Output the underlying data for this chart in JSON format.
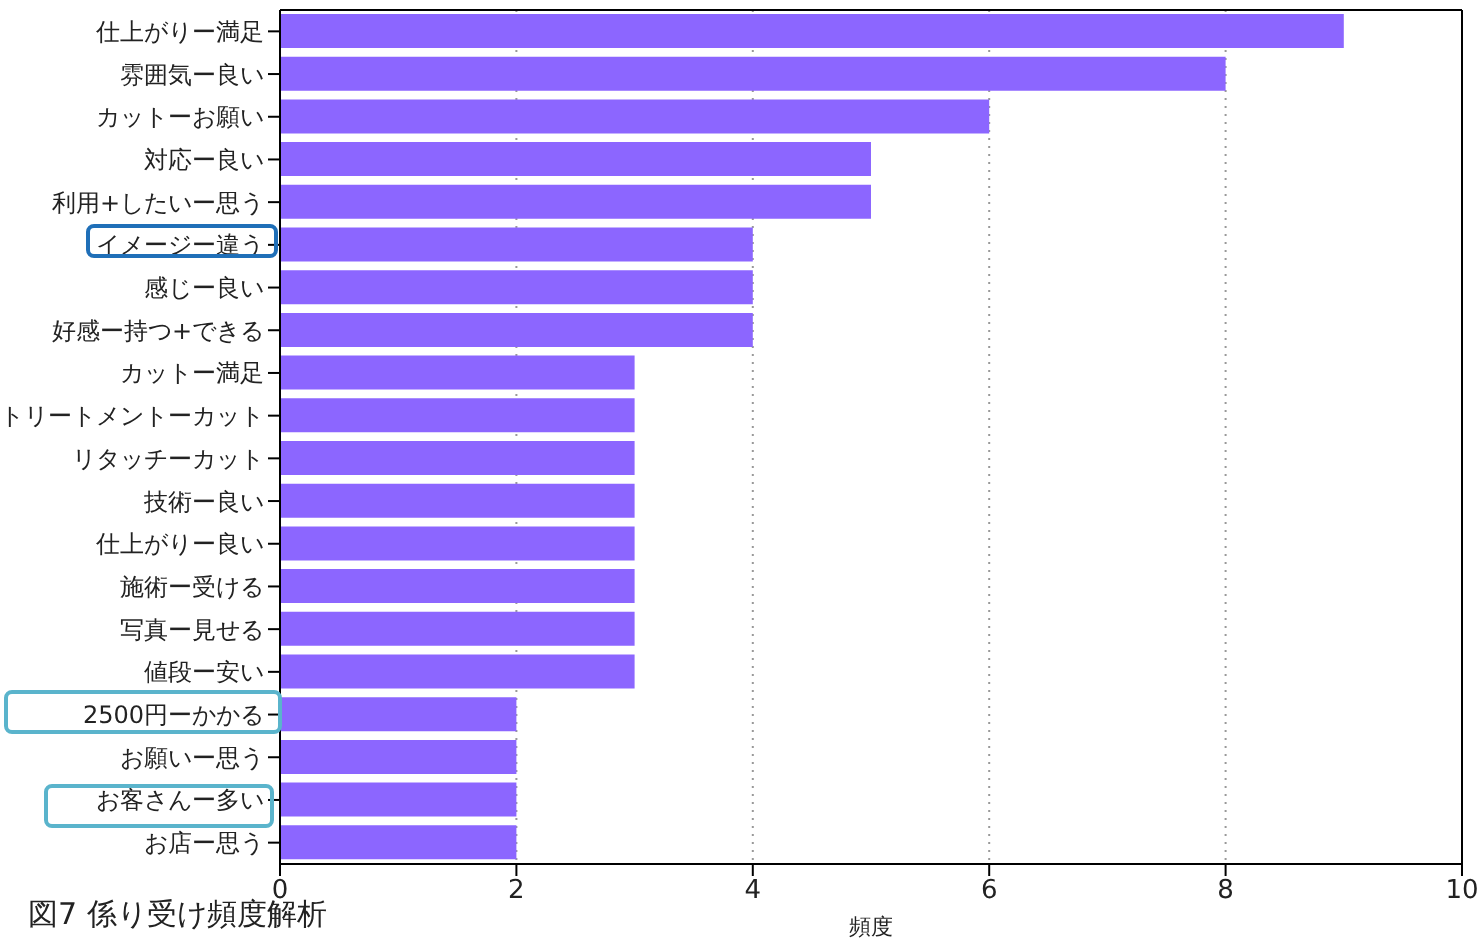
{
  "chart_data": {
    "type": "bar",
    "orientation": "horizontal",
    "xlabel": "頻度",
    "categories": [
      "仕上がりー満足",
      "雰囲気ー良い",
      "カットーお願い",
      "対応ー良い",
      "利用+したいー思う",
      "イメージー違う",
      "感じー良い",
      "好感ー持つ+できる",
      "カットー満足",
      "トリートメントーカット",
      "リタッチーカット",
      "技術ー良い",
      "仕上がりー良い",
      "施術ー受ける",
      "写真ー見せる",
      "値段ー安い",
      "2500円ーかかる",
      "お願いー思う",
      "お客さんー多い",
      "お店ー思う"
    ],
    "values": [
      9,
      8,
      6,
      5,
      5,
      4,
      4,
      4,
      3,
      3,
      3,
      3,
      3,
      3,
      3,
      3,
      2,
      2,
      2,
      2
    ],
    "color": "#8c66ff",
    "xlim": [
      0,
      10
    ],
    "xticks": [
      0,
      2,
      4,
      6,
      8,
      10
    ],
    "grid": "x",
    "annotations": [
      "図7 係り受け頻度解析"
    ]
  }
}
